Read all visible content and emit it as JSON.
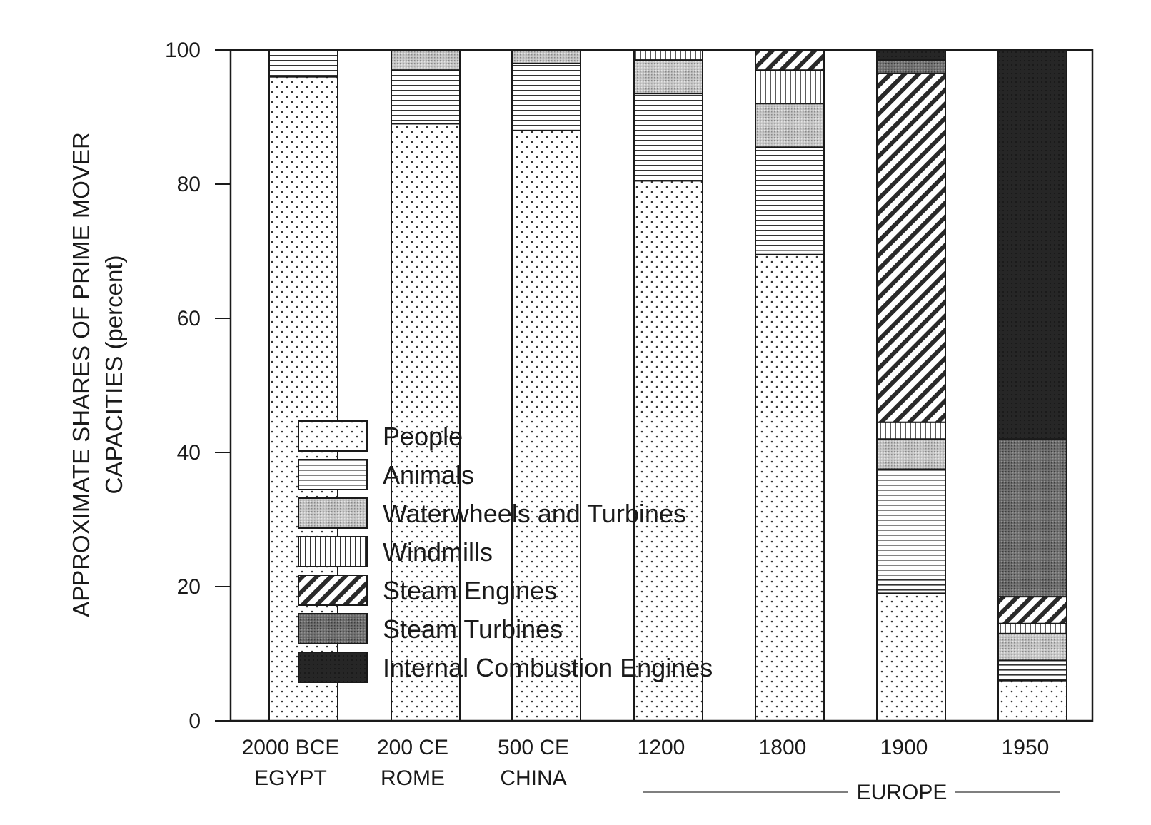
{
  "chart_data": {
    "type": "bar",
    "stacked": true,
    "ylabel_line1": "APPROXIMATE SHARES OF PRIME MOVER",
    "ylabel_line2": "CAPACITIES (percent)",
    "ylim": [
      0,
      100
    ],
    "yticks": [
      "0",
      "20",
      "40",
      "60",
      "80",
      "100"
    ],
    "grid": false,
    "legend_position": "center-left",
    "categories": [
      {
        "line1": "2000 BCE",
        "line2": "EGYPT"
      },
      {
        "line1": "200 CE",
        "line2": "ROME"
      },
      {
        "line1": "500 CE",
        "line2": "CHINA"
      },
      {
        "line1": "1200",
        "line2": ""
      },
      {
        "line1": "1800",
        "line2": ""
      },
      {
        "line1": "1900",
        "line2": ""
      },
      {
        "line1": "1950",
        "line2": ""
      }
    ],
    "group_label": "EUROPE",
    "series": [
      {
        "name": "People",
        "pattern": "dots",
        "values": [
          96,
          89,
          88,
          80.5,
          69.5,
          19,
          6
        ]
      },
      {
        "name": "Animals",
        "pattern": "hlines",
        "values": [
          4,
          8,
          10,
          13,
          16,
          18.5,
          3
        ]
      },
      {
        "name": "Waterwheels and Turbines",
        "pattern": "fine-grey",
        "values": [
          0,
          3,
          2,
          5,
          6.5,
          4.5,
          4
        ]
      },
      {
        "name": "Windmills",
        "pattern": "vlines",
        "values": [
          0,
          0,
          0,
          1.5,
          5,
          2.5,
          1.5
        ]
      },
      {
        "name": "Steam Engines",
        "pattern": "diagonal",
        "values": [
          0,
          0,
          0,
          0,
          3,
          52,
          4
        ]
      },
      {
        "name": "Steam Turbines",
        "pattern": "dark-grey",
        "values": [
          0,
          0,
          0,
          0,
          0,
          2,
          23.5
        ]
      },
      {
        "name": "Internal Combustion Engines",
        "pattern": "black",
        "values": [
          0,
          0,
          0,
          0,
          0,
          1.5,
          58
        ]
      }
    ],
    "colors": {
      "ink": "#1a1a1a",
      "background": "#ffffff"
    }
  }
}
